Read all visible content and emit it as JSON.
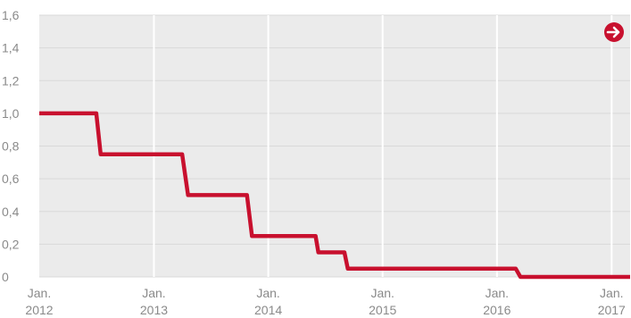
{
  "chart_data": {
    "type": "line",
    "title": "",
    "xlabel": "",
    "ylabel": "",
    "ylim": [
      0,
      1.6
    ],
    "xlim": [
      "2012-01-01",
      "2017-03-01"
    ],
    "y_ticks": [
      "0",
      "0,2",
      "0,4",
      "0,6",
      "0,8",
      "1,0",
      "1,2",
      "1,4",
      "1,6"
    ],
    "x_ticks": [
      {
        "month": "Jan.",
        "year": "2012"
      },
      {
        "month": "Jan.",
        "year": "2013"
      },
      {
        "month": "Jan.",
        "year": "2014"
      },
      {
        "month": "Jan.",
        "year": "2015"
      },
      {
        "month": "Jan.",
        "year": "2016"
      },
      {
        "month": "Jan.",
        "year": "2017"
      }
    ],
    "x_tick_dates": [
      "2012-01-01",
      "2013-01-01",
      "2014-01-01",
      "2015-01-01",
      "2016-01-01",
      "2017-01-01"
    ],
    "grid": true,
    "background": "#ebebeb",
    "series": [
      {
        "color": "#c8102e",
        "step": true,
        "points": [
          {
            "x": "2012-01-01",
            "y": 1.0
          },
          {
            "x": "2012-07-01",
            "y": 1.0
          },
          {
            "x": "2012-07-15",
            "y": 0.75
          },
          {
            "x": "2013-04-01",
            "y": 0.75
          },
          {
            "x": "2013-04-20",
            "y": 0.5
          },
          {
            "x": "2013-10-25",
            "y": 0.5
          },
          {
            "x": "2013-11-10",
            "y": 0.25
          },
          {
            "x": "2014-06-01",
            "y": 0.25
          },
          {
            "x": "2014-06-10",
            "y": 0.15
          },
          {
            "x": "2014-09-01",
            "y": 0.15
          },
          {
            "x": "2014-09-12",
            "y": 0.05
          },
          {
            "x": "2016-03-01",
            "y": 0.05
          },
          {
            "x": "2016-03-16",
            "y": 0.0
          },
          {
            "x": "2017-03-01",
            "y": 0.0
          }
        ]
      }
    ]
  },
  "nav_icon": "arrow-right-circle-icon",
  "accent_color": "#c8102e"
}
